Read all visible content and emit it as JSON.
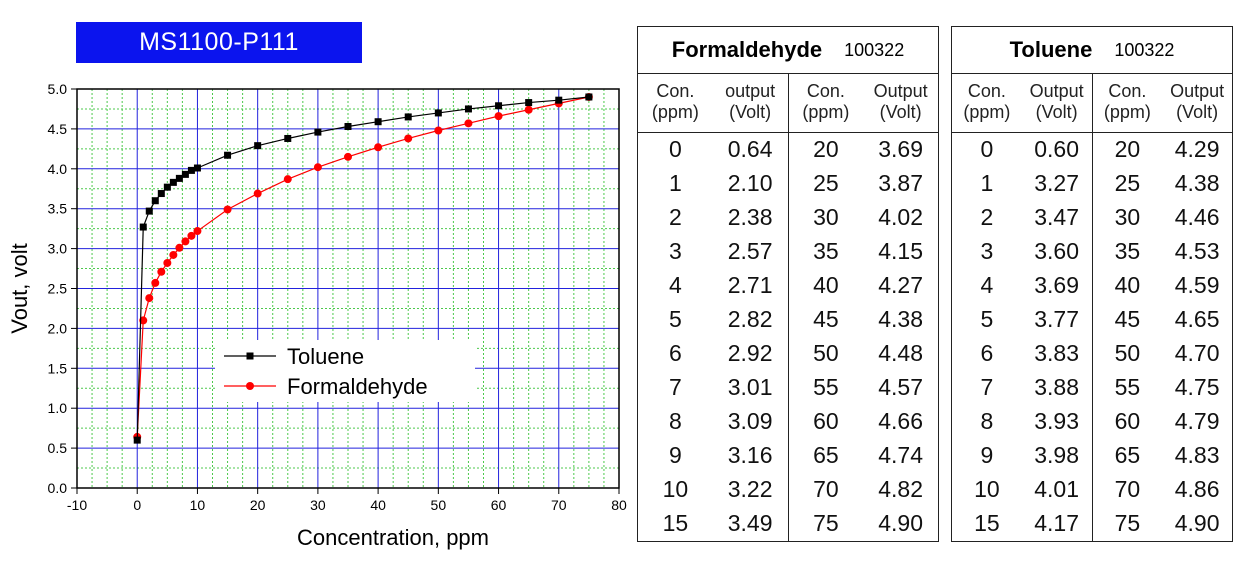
{
  "badge": "MS1100-P111",
  "chart_data": {
    "type": "line",
    "xlabel": "Concentration, ppm",
    "ylabel": "Vout, volt",
    "xlim": [
      -10,
      80
    ],
    "ylim": [
      0.0,
      5.0
    ],
    "xticks": [
      "-10",
      "0",
      "10",
      "20",
      "30",
      "40",
      "50",
      "60",
      "70",
      "80"
    ],
    "yticks": [
      "0.0",
      "0.5",
      "1.0",
      "1.5",
      "2.0",
      "2.5",
      "3.0",
      "3.5",
      "4.0",
      "4.5",
      "5.0"
    ],
    "grid": true,
    "legend_position": "center-left",
    "x": [
      0,
      1,
      2,
      3,
      4,
      5,
      6,
      7,
      8,
      9,
      10,
      15,
      20,
      25,
      30,
      35,
      40,
      45,
      50,
      55,
      60,
      65,
      70,
      75
    ],
    "series": [
      {
        "name": "Toluene",
        "color": "#000000",
        "marker": "square",
        "values": [
          0.6,
          3.27,
          3.47,
          3.6,
          3.69,
          3.77,
          3.83,
          3.88,
          3.93,
          3.98,
          4.01,
          4.17,
          4.29,
          4.38,
          4.46,
          4.53,
          4.59,
          4.65,
          4.7,
          4.75,
          4.79,
          4.83,
          4.86,
          4.9
        ]
      },
      {
        "name": "Formaldehyde",
        "color": "#ff0000",
        "marker": "circle",
        "values": [
          0.64,
          2.1,
          2.38,
          2.57,
          2.71,
          2.82,
          2.92,
          3.01,
          3.09,
          3.16,
          3.22,
          3.49,
          3.69,
          3.87,
          4.02,
          4.15,
          4.27,
          4.38,
          4.48,
          4.57,
          4.66,
          4.74,
          4.82,
          4.9
        ]
      }
    ]
  },
  "tables": [
    {
      "name": "Formaldehyde",
      "code": "100322",
      "headers": [
        [
          "Con.",
          "(ppm)"
        ],
        [
          "output",
          "(Volt)"
        ],
        [
          "Con.",
          "(ppm)"
        ],
        [
          "Output",
          "(Volt)"
        ]
      ],
      "left": [
        [
          "0",
          "0.64"
        ],
        [
          "1",
          "2.10"
        ],
        [
          "2",
          "2.38"
        ],
        [
          "3",
          "2.57"
        ],
        [
          "4",
          "2.71"
        ],
        [
          "5",
          "2.82"
        ],
        [
          "6",
          "2.92"
        ],
        [
          "7",
          "3.01"
        ],
        [
          "8",
          "3.09"
        ],
        [
          "9",
          "3.16"
        ],
        [
          "10",
          "3.22"
        ],
        [
          "15",
          "3.49"
        ]
      ],
      "right": [
        [
          "20",
          "3.69"
        ],
        [
          "25",
          "3.87"
        ],
        [
          "30",
          "4.02"
        ],
        [
          "35",
          "4.15"
        ],
        [
          "40",
          "4.27"
        ],
        [
          "45",
          "4.38"
        ],
        [
          "50",
          "4.48"
        ],
        [
          "55",
          "4.57"
        ],
        [
          "60",
          "4.66"
        ],
        [
          "65",
          "4.74"
        ],
        [
          "70",
          "4.82"
        ],
        [
          "75",
          "4.90"
        ]
      ]
    },
    {
      "name": "Toluene",
      "code": "100322",
      "headers": [
        [
          "Con.",
          "(ppm)"
        ],
        [
          "Output",
          "(Volt)"
        ],
        [
          "Con.",
          "(ppm)"
        ],
        [
          "Output",
          "(Volt)"
        ]
      ],
      "left": [
        [
          "0",
          "0.60"
        ],
        [
          "1",
          "3.27"
        ],
        [
          "2",
          "3.47"
        ],
        [
          "3",
          "3.60"
        ],
        [
          "4",
          "3.69"
        ],
        [
          "5",
          "3.77"
        ],
        [
          "6",
          "3.83"
        ],
        [
          "7",
          "3.88"
        ],
        [
          "8",
          "3.93"
        ],
        [
          "9",
          "3.98"
        ],
        [
          "10",
          "4.01"
        ],
        [
          "15",
          "4.17"
        ]
      ],
      "right": [
        [
          "20",
          "4.29"
        ],
        [
          "25",
          "4.38"
        ],
        [
          "30",
          "4.46"
        ],
        [
          "35",
          "4.53"
        ],
        [
          "40",
          "4.59"
        ],
        [
          "45",
          "4.65"
        ],
        [
          "50",
          "4.70"
        ],
        [
          "55",
          "4.75"
        ],
        [
          "60",
          "4.79"
        ],
        [
          "65",
          "4.83"
        ],
        [
          "70",
          "4.86"
        ],
        [
          "75",
          "4.90"
        ]
      ]
    }
  ]
}
